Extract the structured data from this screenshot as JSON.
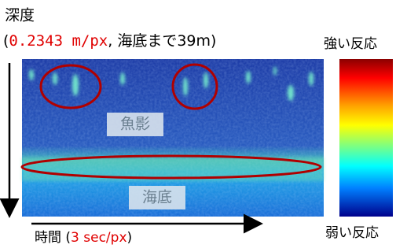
{
  "axes": {
    "depth_label": "深度",
    "scale_open": "(",
    "scale_value": "0.2343 m/px",
    "scale_rest": ", 海底まで39m)",
    "time_label": "時間 (",
    "time_value": "3 sec/px",
    "time_close": ")"
  },
  "colorbar": {
    "high_label": "強い反応",
    "low_label": "弱い反応"
  },
  "annotations": {
    "fish": "魚影",
    "seabed": "海底"
  }
}
